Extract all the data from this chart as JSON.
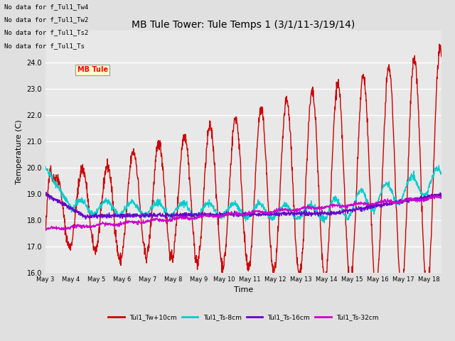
{
  "title": "MB Tule Tower: Tule Temps 1 (3/1/11-3/19/14)",
  "ylabel": "Temperature (C)",
  "xlabel": "Time",
  "ylim": [
    16.0,
    25.2
  ],
  "yticks": [
    16.0,
    17.0,
    18.0,
    19.0,
    20.0,
    21.0,
    22.0,
    23.0,
    24.0
  ],
  "xlim": [
    0,
    15.5
  ],
  "xtick_labels": [
    "May 3",
    "May 4",
    "May 5",
    "May 6",
    "May 7",
    "May 8",
    "May 9",
    "May 10",
    "May 11",
    "May 12",
    "May 13",
    "May 14",
    "May 15",
    "May 16",
    "May 17",
    "May 18"
  ],
  "xtick_positions": [
    0,
    1,
    2,
    3,
    4,
    5,
    6,
    7,
    8,
    9,
    10,
    11,
    12,
    13,
    14,
    15
  ],
  "bg_color": "#e0e0e0",
  "plot_bg_color": "#e8e8e8",
  "grid_color": "#ffffff",
  "no_data_lines": [
    "No data for f_Tul1_Tw4",
    "No data for f_Tul1_Tw2",
    "No data for f_Tul1_Ts2",
    "No data for f_Tul1_Ts"
  ],
  "legend_entries": [
    "Tul1_Tw+10cm",
    "Tul1_Ts-8cm",
    "Tul1_Ts-16cm",
    "Tul1_Ts-32cm"
  ],
  "legend_colors": [
    "#cc0000",
    "#00cccc",
    "#6600cc",
    "#cc00cc"
  ],
  "series_colors": [
    "#cc0000",
    "#00cccc",
    "#6600cc",
    "#cc00cc"
  ],
  "title_fontsize": 10,
  "axis_fontsize": 8,
  "tick_fontsize": 7
}
